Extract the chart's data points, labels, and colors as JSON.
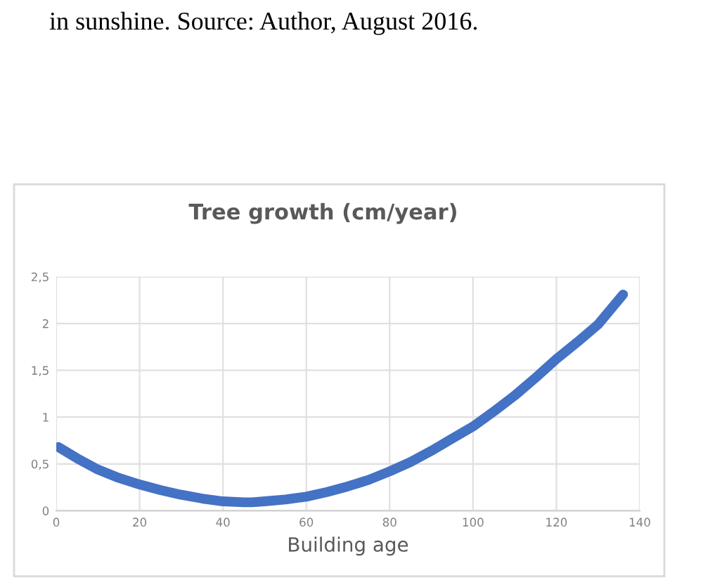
{
  "chart_data": {
    "type": "line",
    "title": "Tree growth (cm/year)",
    "xlabel": "Building age",
    "annotations": [
      "in sunshine. Source: Author, August 2016."
    ],
    "x": [
      0.5,
      5,
      10,
      15,
      20,
      25,
      30,
      35,
      40,
      45,
      47,
      50,
      55,
      60,
      65,
      70,
      75,
      80,
      85,
      90,
      95,
      100,
      105,
      110,
      115,
      120,
      125,
      130,
      136
    ],
    "series": [
      {
        "color": "#4472c4",
        "values": [
          0.68,
          0.56,
          0.44,
          0.35,
          0.28,
          0.22,
          0.17,
          0.13,
          0.1,
          0.09,
          0.09,
          0.1,
          0.12,
          0.15,
          0.2,
          0.26,
          0.33,
          0.42,
          0.52,
          0.64,
          0.77,
          0.9,
          1.06,
          1.23,
          1.42,
          1.62,
          1.8,
          1.99,
          2.31
        ]
      }
    ],
    "xlim": [
      0,
      140
    ],
    "xticks": [
      0,
      20,
      40,
      60,
      80,
      100,
      120,
      140
    ],
    "ylim": [
      0,
      2.5
    ],
    "yticks": [
      0,
      {
        "value": 0.5,
        "label": "0,5"
      },
      1,
      {
        "value": 1.5,
        "label": "1,5"
      },
      2,
      {
        "value": 2.5,
        "label": "2,5"
      }
    ],
    "grid": true,
    "legend": false,
    "marker": "none",
    "line_style": "solid"
  }
}
